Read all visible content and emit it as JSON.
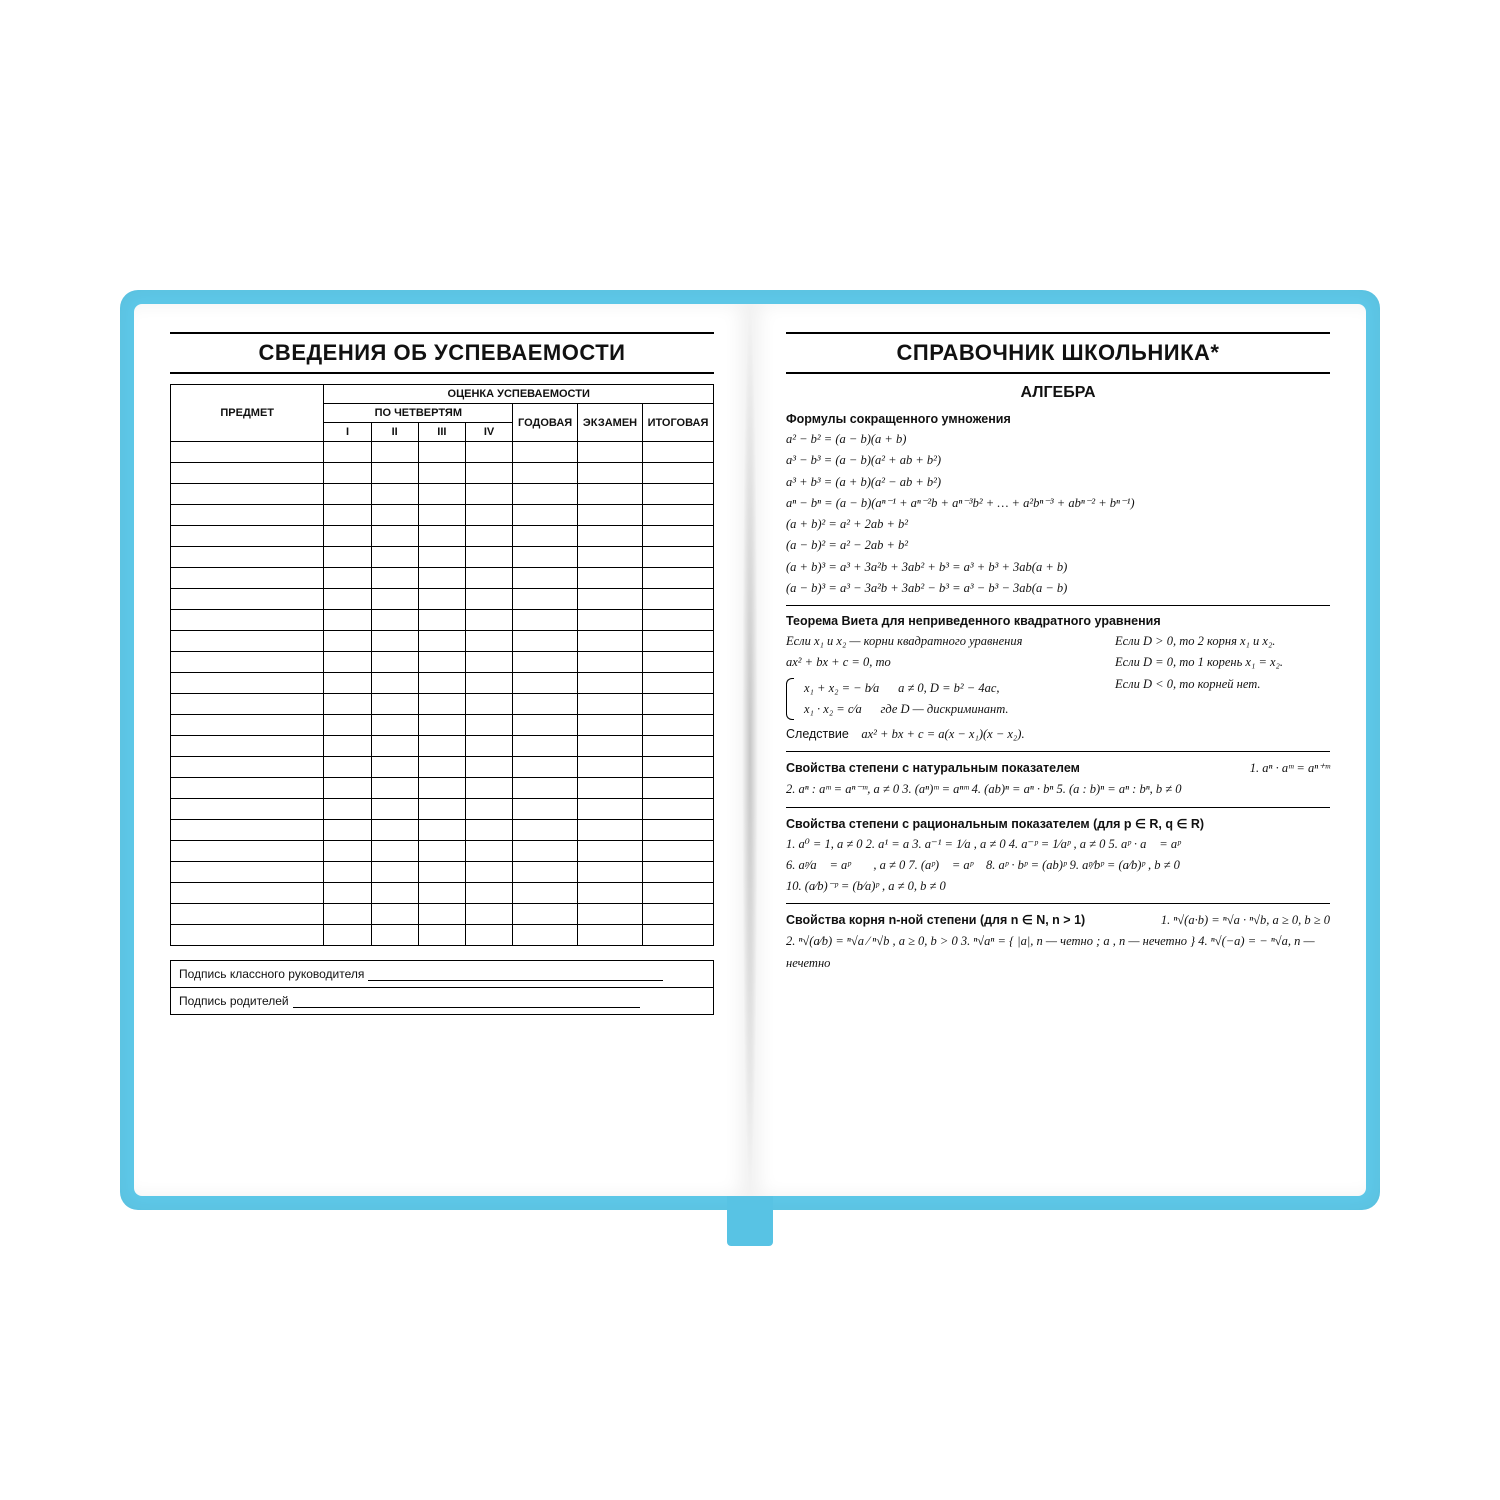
{
  "colors": {
    "cover": "#5ec8e8",
    "page": "#ffffff",
    "ink": "#111111",
    "ribbon": "#58c3e4"
  },
  "layout": {
    "book_w": 1260,
    "book_h": 920,
    "page_padding": 32,
    "body_rows": 24
  },
  "left": {
    "title": "СВЕДЕНИЯ ОБ УСПЕВАЕМОСТИ",
    "header": {
      "subject": "ПРЕДМЕТ",
      "group_top": "ОЦЕНКА УСПЕВАЕМОСТИ",
      "quarters_label": "ПО ЧЕТВЕРТЯМ",
      "quarters": [
        "I",
        "II",
        "III",
        "IV"
      ],
      "annual": "ГОДОВАЯ",
      "exam": "ЭКЗАМЕН",
      "final": "ИТОГОВАЯ"
    },
    "sign1": "Подпись классного руководителя",
    "sign2": "Подпись родителей"
  },
  "right": {
    "title": "СПРАВОЧНИК ШКОЛЬНИКА*",
    "subject": "АЛГЕБРА",
    "sec1": {
      "h": "Формулы сокращенного умножения",
      "lines": [
        "a² − b² = (a − b)(a + b)",
        "a³ − b³ = (a − b)(a² + ab + b²)",
        "a³ + b³ = (a + b)(a² − ab + b²)",
        "aⁿ − bⁿ = (a − b)(aⁿ⁻¹ + aⁿ⁻²b + aⁿ⁻³b² + … + a²bⁿ⁻³ + abⁿ⁻² + bⁿ⁻¹)",
        "(a + b)² = a² + 2ab + b²",
        "(a − b)² = a² − 2ab + b²",
        "(a + b)³ = a³ + 3a²b + 3ab² + b³ = a³ + b³ + 3ab(a + b)",
        "(a − b)³ = a³ − 3a²b + 3ab² − b³ = a³ − b³ − 3ab(a − b)"
      ]
    },
    "sec2": {
      "h": "Теорема Виета для неприведенного квадратного уравнения",
      "intro_l1": "Если  x₁  и  x₂ — корни квадратного уравнения",
      "intro_l2": "ax² + bx + c = 0,  то",
      "sys1": "x₁ + x₂ = − b⁄a",
      "sys2": "x₁ · x₂ = c⁄a",
      "cond1": "a ≠ 0,   D = b² − 4ac,",
      "cond2": "где D — дискриминант.",
      "r1": "Если   D > 0, то 2 корня x₁ и x₂.",
      "r2": "Если   D = 0, то 1 корень x₁ = x₂.",
      "r3": "Если   D < 0, то корней нет.",
      "coro_label": "Следствие",
      "coro": "ax² + bx + c = a(x − x₁)(x − x₂)."
    },
    "sec3": {
      "h": "Свойства степени с натуральным показателем",
      "side": "1.  aⁿ · aᵐ = aⁿ⁺ᵐ",
      "line": "2. aⁿ : aᵐ = aⁿ⁻ᵐ,  a ≠ 0    3. (aⁿ)ᵐ = aⁿᵐ    4. (ab)ⁿ = aⁿ · bⁿ    5. (a : b)ⁿ = aⁿ : bⁿ,   b ≠ 0"
    },
    "sec4": {
      "h": "Свойства степени с рациональным показателем (для  p ∈ R,  q ∈ R)",
      "l1": "1.  a⁰ = 1,   a ≠ 0     2.  a¹ = a     3.  a⁻¹ = 1⁄a ,  a ≠ 0     4.  a⁻ᵖ = 1⁄aᵖ ,  a ≠ 0     5.  aᵖ · a᷍ = aᵖ⁺᷍",
      "l2": "6.  aᵖ⁄a᷍ = aᵖ⁻᷍ ,  a ≠ 0     7.  (aᵖ)᷍ = aᵖ᷍     8.  aᵖ · bᵖ = (ab)ᵖ     9.  aᵖ⁄bᵖ = (a⁄b)ᵖ ,  b ≠ 0",
      "l3": "10.  (a⁄b)⁻ᵖ = (b⁄a)ᵖ ,   a ≠ 0,  b ≠ 0"
    },
    "sec5": {
      "h": "Свойства корня n-ной степени (для  n ∈ N,  n > 1)",
      "side": "1.  ⁿ√(a·b) = ⁿ√a · ⁿ√b,   a ≥ 0,   b ≥ 0",
      "l1": "2.  ⁿ√(a⁄b) = ⁿ√a ⁄ ⁿ√b ,  a ≥ 0, b > 0     3.  ⁿ√aⁿ = { |a|, n — четно ;  a , n — нечетно }     4.  ⁿ√(−a) = − ⁿ√a,  n — нечетно"
    }
  }
}
